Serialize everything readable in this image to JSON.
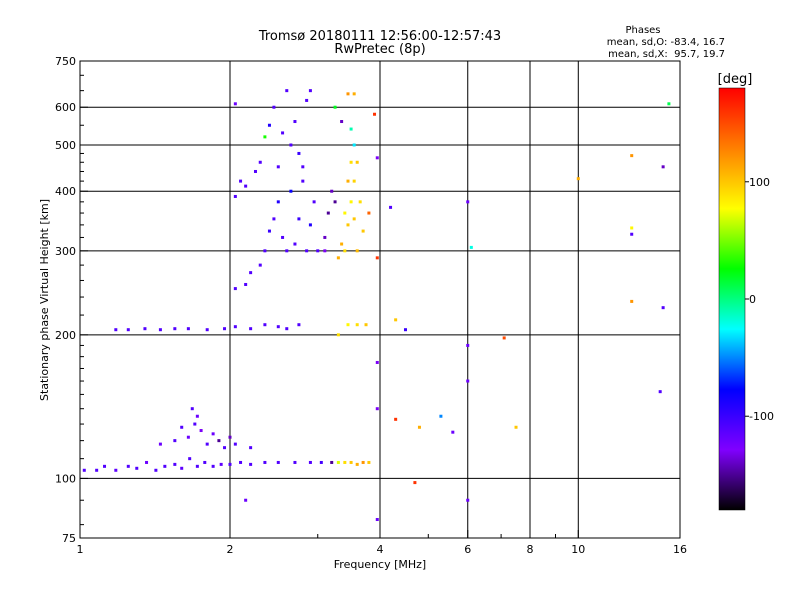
{
  "chart_data": {
    "type": "scatter",
    "title": "Tromsø 20180111 12:56:00-12:57:43",
    "subtitle": "RwPretec (8p)",
    "xlabel": "Frequency [MHz]",
    "ylabel": "Stationary phase Virtual Height [km]",
    "x_scale": "log",
    "y_scale": "log",
    "xlim": [
      1,
      16
    ],
    "ylim": [
      75,
      750
    ],
    "xticks": [
      1,
      2,
      4,
      6,
      8,
      10,
      16
    ],
    "xtick_labels": [
      "1",
      "2",
      "4",
      "6",
      "8",
      "10",
      "16"
    ],
    "x_minor": [
      3,
      5,
      7,
      9
    ],
    "yticks": [
      75,
      100,
      200,
      300,
      400,
      500,
      600,
      750
    ],
    "ytick_labels": [
      "75",
      "100",
      "200",
      "300",
      "400",
      "500",
      "600",
      "750"
    ],
    "grid": true,
    "phases_box": {
      "heading": "Phases",
      "line_o": "mean, sd,O: -83.4, 16.7",
      "line_x": "mean, sd,X:  95.7, 19.7"
    },
    "colorbar": {
      "unit": "[deg]",
      "range": [
        -180,
        180
      ],
      "ticks": [
        100,
        0,
        -100
      ],
      "tick_labels": [
        "100",
        "0",
        "-100"
      ],
      "colors": [
        "#ff0000",
        "#ff8000",
        "#ffff00",
        "#00ff00",
        "#00ffff",
        "#0000ff",
        "#8000ff",
        "#000000"
      ]
    },
    "series": [
      {
        "points": [
          [
            1.02,
            104,
            -110
          ],
          [
            1.08,
            104,
            -110
          ],
          [
            1.12,
            106,
            -110
          ],
          [
            1.18,
            104,
            -115
          ],
          [
            1.25,
            106,
            -110
          ],
          [
            1.3,
            105,
            -110
          ],
          [
            1.36,
            108,
            -120
          ],
          [
            1.42,
            104,
            -110
          ],
          [
            1.48,
            106,
            -110
          ],
          [
            1.55,
            107,
            -110
          ],
          [
            1.6,
            105,
            -115
          ],
          [
            1.66,
            110,
            -110
          ],
          [
            1.72,
            106,
            -110
          ],
          [
            1.78,
            108,
            -110
          ],
          [
            1.85,
            106,
            -110
          ],
          [
            1.92,
            107,
            -115
          ],
          [
            2.0,
            107,
            -110
          ],
          [
            2.1,
            108,
            -110
          ],
          [
            2.2,
            107,
            -110
          ],
          [
            2.35,
            108,
            -110
          ],
          [
            2.5,
            108,
            -110
          ],
          [
            2.7,
            108,
            -110
          ],
          [
            2.9,
            108,
            -110
          ],
          [
            3.05,
            108,
            -105
          ],
          [
            3.2,
            108,
            -150
          ],
          [
            3.3,
            108,
            70
          ],
          [
            3.4,
            108,
            90
          ],
          [
            3.5,
            108,
            100
          ],
          [
            3.6,
            107,
            110
          ],
          [
            3.7,
            108,
            120
          ],
          [
            3.8,
            108,
            100
          ],
          [
            1.45,
            118,
            -120
          ],
          [
            1.55,
            120,
            -110
          ],
          [
            1.6,
            128,
            -110
          ],
          [
            1.65,
            122,
            -120
          ],
          [
            1.7,
            130,
            -110
          ],
          [
            1.75,
            126,
            -130
          ],
          [
            1.8,
            118,
            -110
          ],
          [
            1.85,
            124,
            -120
          ],
          [
            1.9,
            120,
            -150
          ],
          [
            1.95,
            116,
            -110
          ],
          [
            2.0,
            122,
            -140
          ],
          [
            2.05,
            118,
            -110
          ],
          [
            1.68,
            140,
            -110
          ],
          [
            1.72,
            135,
            -120
          ],
          [
            2.2,
            116,
            -110
          ],
          [
            1.18,
            205,
            -110
          ],
          [
            1.25,
            205,
            -110
          ],
          [
            1.35,
            206,
            -110
          ],
          [
            1.45,
            205,
            -110
          ],
          [
            1.55,
            206,
            -110
          ],
          [
            1.65,
            206,
            -110
          ],
          [
            1.8,
            205,
            -110
          ],
          [
            1.95,
            206,
            -110
          ],
          [
            2.05,
            208,
            -110
          ],
          [
            2.2,
            206,
            -110
          ],
          [
            2.35,
            210,
            -110
          ],
          [
            2.5,
            208,
            -110
          ],
          [
            2.6,
            206,
            -110
          ],
          [
            2.75,
            210,
            -110
          ],
          [
            3.45,
            210,
            80
          ],
          [
            3.6,
            210,
            90
          ],
          [
            3.75,
            210,
            100
          ],
          [
            2.05,
            250,
            -110
          ],
          [
            2.15,
            255,
            -110
          ],
          [
            2.2,
            270,
            -110
          ],
          [
            2.3,
            280,
            -110
          ],
          [
            2.35,
            300,
            -110
          ],
          [
            2.4,
            330,
            -100
          ],
          [
            2.45,
            350,
            -110
          ],
          [
            2.5,
            380,
            -90
          ],
          [
            2.55,
            320,
            -110
          ],
          [
            2.6,
            300,
            -110
          ],
          [
            2.65,
            400,
            -80
          ],
          [
            2.7,
            310,
            -110
          ],
          [
            2.75,
            350,
            -100
          ],
          [
            2.8,
            420,
            -110
          ],
          [
            2.85,
            300,
            -110
          ],
          [
            2.9,
            340,
            -90
          ],
          [
            2.95,
            380,
            -110
          ],
          [
            3.0,
            300,
            -110
          ],
          [
            2.65,
            500,
            -110
          ],
          [
            2.7,
            560,
            -110
          ],
          [
            2.75,
            480,
            -100
          ],
          [
            2.85,
            620,
            -110
          ],
          [
            2.9,
            650,
            -110
          ],
          [
            2.8,
            450,
            -110
          ],
          [
            2.5,
            450,
            -110
          ],
          [
            2.55,
            530,
            -110
          ],
          [
            2.45,
            600,
            -110
          ],
          [
            2.6,
            650,
            -110
          ],
          [
            2.4,
            550,
            -90
          ],
          [
            2.35,
            520,
            30
          ],
          [
            2.1,
            420,
            -110
          ],
          [
            2.05,
            390,
            -110
          ],
          [
            2.15,
            410,
            -110
          ],
          [
            2.25,
            440,
            -110
          ],
          [
            2.3,
            460,
            -110
          ],
          [
            3.1,
            320,
            -140
          ],
          [
            3.15,
            360,
            -150
          ],
          [
            3.2,
            400,
            -140
          ],
          [
            3.25,
            380,
            -150
          ],
          [
            3.1,
            300,
            -130
          ],
          [
            3.3,
            290,
            110
          ],
          [
            3.4,
            300,
            90
          ],
          [
            3.45,
            340,
            100
          ],
          [
            3.5,
            380,
            80
          ],
          [
            3.55,
            420,
            95
          ],
          [
            3.6,
            460,
            100
          ],
          [
            3.5,
            460,
            90
          ],
          [
            3.45,
            420,
            110
          ],
          [
            3.4,
            360,
            80
          ],
          [
            3.55,
            350,
            100
          ],
          [
            3.65,
            380,
            90
          ],
          [
            3.7,
            330,
            100
          ],
          [
            3.35,
            310,
            110
          ],
          [
            3.6,
            300,
            105
          ],
          [
            3.55,
            640,
            110
          ],
          [
            3.45,
            640,
            120
          ],
          [
            3.5,
            540,
            -10
          ],
          [
            3.55,
            500,
            -30
          ],
          [
            3.35,
            560,
            -140
          ],
          [
            4.3,
            215,
            100
          ],
          [
            4.5,
            205,
            -100
          ],
          [
            4.2,
            370,
            -110
          ],
          [
            6.0,
            380,
            -120
          ],
          [
            6.1,
            305,
            -20
          ],
          [
            6.0,
            190,
            -120
          ],
          [
            6.0,
            160,
            -120
          ],
          [
            6.0,
            90,
            -120
          ],
          [
            7.1,
            197,
            150
          ],
          [
            7.5,
            128,
            100
          ],
          [
            5.6,
            125,
            -120
          ],
          [
            5.3,
            135,
            -50
          ],
          [
            4.7,
            98,
            160
          ],
          [
            4.3,
            133,
            160
          ],
          [
            4.8,
            128,
            110
          ],
          [
            3.95,
            82,
            -120
          ],
          [
            2.15,
            90,
            -120
          ],
          [
            2.05,
            610,
            -120
          ],
          [
            3.95,
            470,
            -130
          ],
          [
            3.95,
            290,
            160
          ],
          [
            3.95,
            175,
            -130
          ],
          [
            3.95,
            140,
            -130
          ],
          [
            3.9,
            580,
            160
          ],
          [
            3.8,
            360,
            140
          ],
          [
            10.0,
            425,
            110
          ],
          [
            12.8,
            475,
            120
          ],
          [
            12.8,
            335,
            80
          ],
          [
            12.8,
            235,
            120
          ],
          [
            12.8,
            325,
            -110
          ],
          [
            14.8,
            450,
            -140
          ],
          [
            14.8,
            228,
            -110
          ],
          [
            14.6,
            152,
            -110
          ],
          [
            15.2,
            610,
            10
          ],
          [
            3.3,
            200,
            90
          ],
          [
            3.25,
            600,
            20
          ]
        ]
      }
    ]
  }
}
